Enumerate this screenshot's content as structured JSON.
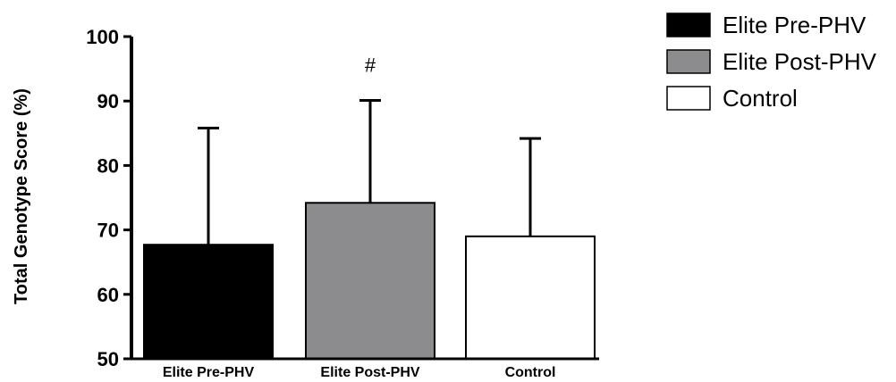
{
  "chart_data": {
    "type": "bar",
    "title": "",
    "xlabel": "",
    "ylabel": "Total Genotype Score (%)",
    "ylim": [
      50,
      100
    ],
    "yticks": [
      50,
      60,
      70,
      80,
      90,
      100
    ],
    "categories": [
      "Elite Pre-PHV",
      "Elite Post-PHV",
      "Control"
    ],
    "values": [
      67.7,
      74.2,
      69.0
    ],
    "error_upper": [
      85.8,
      90.1,
      84.2
    ],
    "colors": [
      "#000000",
      "#8c8c8e",
      "#ffffff"
    ],
    "annotations": [
      {
        "category": "Elite Post-PHV",
        "text": "#"
      }
    ],
    "legend": {
      "placement": "top-right",
      "entries": [
        "Elite Pre-PHV",
        "Elite Post-PHV",
        "Control"
      ]
    },
    "grid": false
  }
}
